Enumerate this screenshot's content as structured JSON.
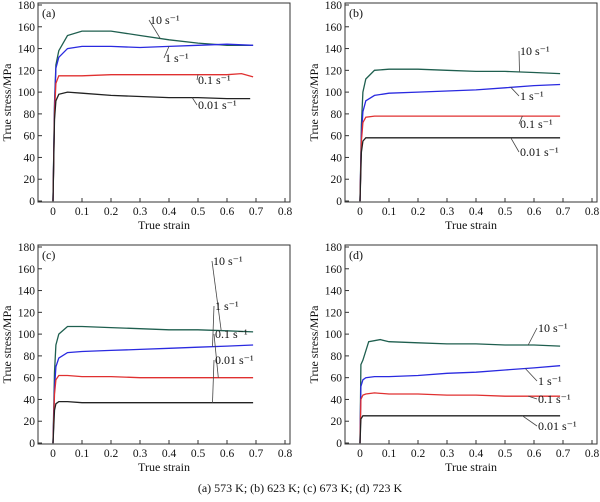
{
  "caption": "(a) 573 K; (b) 623 K; (c) 673 K; (d) 723 K",
  "chart_data": [
    {
      "type": "line",
      "panel_label": "(a)",
      "xlabel": "True strain",
      "ylabel": "True stress/MPa",
      "xlim": [
        -0.05,
        0.8
      ],
      "ylim": [
        0,
        180
      ],
      "xticks": [
        "0",
        "0.1",
        "0.2",
        "0.3",
        "0.4",
        "0.5",
        "0.6",
        "0.7",
        "0.8"
      ],
      "yticks": [
        "0",
        "20",
        "40",
        "60",
        "80",
        "100",
        "120",
        "140",
        "160",
        "180"
      ],
      "grid": false,
      "series": [
        {
          "name": "10 s⁻¹",
          "color": "#1f5f4f",
          "x": [
            0,
            0.005,
            0.01,
            0.02,
            0.05,
            0.1,
            0.2,
            0.3,
            0.4,
            0.5,
            0.6,
            0.69
          ],
          "y": [
            0,
            90,
            125,
            138,
            152,
            156,
            156,
            152,
            148,
            145,
            143,
            143
          ]
        },
        {
          "name": "1 s⁻¹",
          "color": "#2a2ae0",
          "x": [
            0,
            0.005,
            0.01,
            0.02,
            0.05,
            0.1,
            0.2,
            0.3,
            0.4,
            0.5,
            0.6,
            0.69
          ],
          "y": [
            0,
            85,
            122,
            132,
            140,
            142,
            142,
            141,
            142,
            143,
            144,
            143
          ]
        },
        {
          "name": "0.1 s⁻¹",
          "color": "#e03030",
          "x": [
            0,
            0.005,
            0.01,
            0.02,
            0.05,
            0.1,
            0.2,
            0.3,
            0.4,
            0.5,
            0.6,
            0.65,
            0.69
          ],
          "y": [
            0,
            80,
            108,
            115,
            115,
            115,
            116,
            116,
            116,
            116,
            116,
            117,
            114
          ]
        },
        {
          "name": "0.01 s⁻¹",
          "color": "#222222",
          "x": [
            0,
            0.005,
            0.01,
            0.02,
            0.05,
            0.1,
            0.2,
            0.3,
            0.4,
            0.5,
            0.6,
            0.68
          ],
          "y": [
            0,
            75,
            92,
            98,
            100,
            99,
            97,
            96,
            95,
            95,
            94,
            94
          ]
        }
      ]
    },
    {
      "type": "line",
      "panel_label": "(b)",
      "xlabel": "True strain",
      "ylabel": "True stress/MPa",
      "xlim": [
        -0.05,
        0.8
      ],
      "ylim": [
        0,
        180
      ],
      "xticks": [
        "0",
        "0.1",
        "0.2",
        "0.3",
        "0.4",
        "0.5",
        "0.6",
        "0.7",
        "0.8"
      ],
      "yticks": [
        "0",
        "20",
        "40",
        "60",
        "80",
        "100",
        "120",
        "140",
        "160",
        "180"
      ],
      "grid": false,
      "series": [
        {
          "name": "10 s⁻¹",
          "color": "#1f5f4f",
          "x": [
            0,
            0.005,
            0.01,
            0.02,
            0.05,
            0.1,
            0.2,
            0.3,
            0.4,
            0.5,
            0.6,
            0.69
          ],
          "y": [
            0,
            70,
            100,
            112,
            120,
            121,
            121,
            120,
            119,
            119,
            118,
            117
          ]
        },
        {
          "name": "1 s⁻¹",
          "color": "#2a2ae0",
          "x": [
            0,
            0.005,
            0.01,
            0.02,
            0.05,
            0.1,
            0.2,
            0.3,
            0.4,
            0.5,
            0.6,
            0.69
          ],
          "y": [
            0,
            60,
            82,
            92,
            97,
            99,
            100,
            101,
            102,
            104,
            106,
            107
          ]
        },
        {
          "name": "0.1 s⁻¹",
          "color": "#e03030",
          "x": [
            0,
            0.005,
            0.01,
            0.02,
            0.05,
            0.1,
            0.2,
            0.3,
            0.4,
            0.5,
            0.6,
            0.69
          ],
          "y": [
            0,
            55,
            72,
            77,
            78,
            78,
            78,
            78,
            78,
            78,
            78,
            78
          ]
        },
        {
          "name": "0.01 s⁻¹",
          "color": "#222222",
          "x": [
            0,
            0.005,
            0.01,
            0.02,
            0.05,
            0.1,
            0.2,
            0.3,
            0.4,
            0.5,
            0.6,
            0.69
          ],
          "y": [
            0,
            45,
            55,
            58,
            58,
            58,
            58,
            58,
            58,
            58,
            58,
            58
          ]
        }
      ]
    },
    {
      "type": "line",
      "panel_label": "(c)",
      "xlabel": "True strain",
      "ylabel": "True stress/MPa",
      "xlim": [
        -0.05,
        0.8
      ],
      "ylim": [
        0,
        180
      ],
      "xticks": [
        "0",
        "0.1",
        "0.2",
        "0.3",
        "0.4",
        "0.5",
        "0.6",
        "0.7",
        "0.8"
      ],
      "yticks": [
        "0",
        "20",
        "40",
        "60",
        "80",
        "100",
        "120",
        "140",
        "160",
        "180"
      ],
      "grid": false,
      "series": [
        {
          "name": "10 s⁻¹",
          "color": "#1f5f4f",
          "x": [
            0,
            0.005,
            0.01,
            0.02,
            0.05,
            0.1,
            0.2,
            0.3,
            0.4,
            0.5,
            0.6,
            0.69
          ],
          "y": [
            0,
            65,
            90,
            100,
            107,
            107,
            106,
            105,
            104,
            104,
            103,
            102
          ]
        },
        {
          "name": "1 s⁻¹",
          "color": "#2a2ae0",
          "x": [
            0,
            0.005,
            0.01,
            0.02,
            0.05,
            0.1,
            0.2,
            0.3,
            0.4,
            0.5,
            0.6,
            0.69
          ],
          "y": [
            0,
            50,
            70,
            78,
            83,
            84,
            85,
            86,
            87,
            88,
            89,
            90
          ]
        },
        {
          "name": "0.1 s⁻¹",
          "color": "#e03030",
          "x": [
            0,
            0.005,
            0.01,
            0.02,
            0.05,
            0.1,
            0.2,
            0.3,
            0.4,
            0.5,
            0.6,
            0.69
          ],
          "y": [
            0,
            45,
            58,
            62,
            62,
            61,
            61,
            60,
            60,
            60,
            60,
            60
          ]
        },
        {
          "name": "0.01 s⁻¹",
          "color": "#222222",
          "x": [
            0,
            0.005,
            0.01,
            0.02,
            0.05,
            0.1,
            0.2,
            0.3,
            0.4,
            0.5,
            0.6,
            0.69
          ],
          "y": [
            0,
            30,
            36,
            38,
            38,
            37,
            37,
            37,
            37,
            37,
            37,
            37
          ]
        }
      ]
    },
    {
      "type": "line",
      "panel_label": "(d)",
      "xlabel": "True strain",
      "ylabel": "True stress/MPa",
      "xlim": [
        -0.05,
        0.8
      ],
      "ylim": [
        0,
        180
      ],
      "xticks": [
        "0",
        "0.1",
        "0.2",
        "0.3",
        "0.4",
        "0.5",
        "0.6",
        "0.7",
        "0.8"
      ],
      "yticks": [
        "0",
        "20",
        "40",
        "60",
        "80",
        "100",
        "120",
        "140",
        "160",
        "180"
      ],
      "grid": false,
      "series": [
        {
          "name": "10 s⁻¹",
          "color": "#1f5f4f",
          "x": [
            0,
            0.003,
            0.01,
            0.03,
            0.07,
            0.1,
            0.2,
            0.3,
            0.4,
            0.5,
            0.6,
            0.69
          ],
          "y": [
            0,
            72,
            76,
            93,
            95,
            93,
            92,
            91,
            91,
            90,
            90,
            89
          ]
        },
        {
          "name": "1 s⁻¹",
          "color": "#2a2ae0",
          "x": [
            0,
            0.003,
            0.01,
            0.02,
            0.05,
            0.1,
            0.2,
            0.3,
            0.4,
            0.5,
            0.6,
            0.69
          ],
          "y": [
            0,
            52,
            58,
            60,
            61,
            61,
            62,
            64,
            65,
            67,
            69,
            71
          ]
        },
        {
          "name": "0.1 s⁻¹",
          "color": "#e03030",
          "x": [
            0,
            0.003,
            0.01,
            0.02,
            0.05,
            0.1,
            0.2,
            0.3,
            0.4,
            0.5,
            0.6,
            0.69
          ],
          "y": [
            0,
            40,
            44,
            45,
            46,
            45,
            45,
            44,
            44,
            43,
            43,
            43
          ]
        },
        {
          "name": "0.01 s⁻¹",
          "color": "#222222",
          "x": [
            0,
            0.003,
            0.01,
            0.02,
            0.05,
            0.1,
            0.2,
            0.3,
            0.4,
            0.5,
            0.6,
            0.69
          ],
          "y": [
            0,
            22,
            25,
            25,
            25,
            25,
            25,
            25,
            25,
            25,
            25,
            25
          ]
        }
      ]
    }
  ]
}
